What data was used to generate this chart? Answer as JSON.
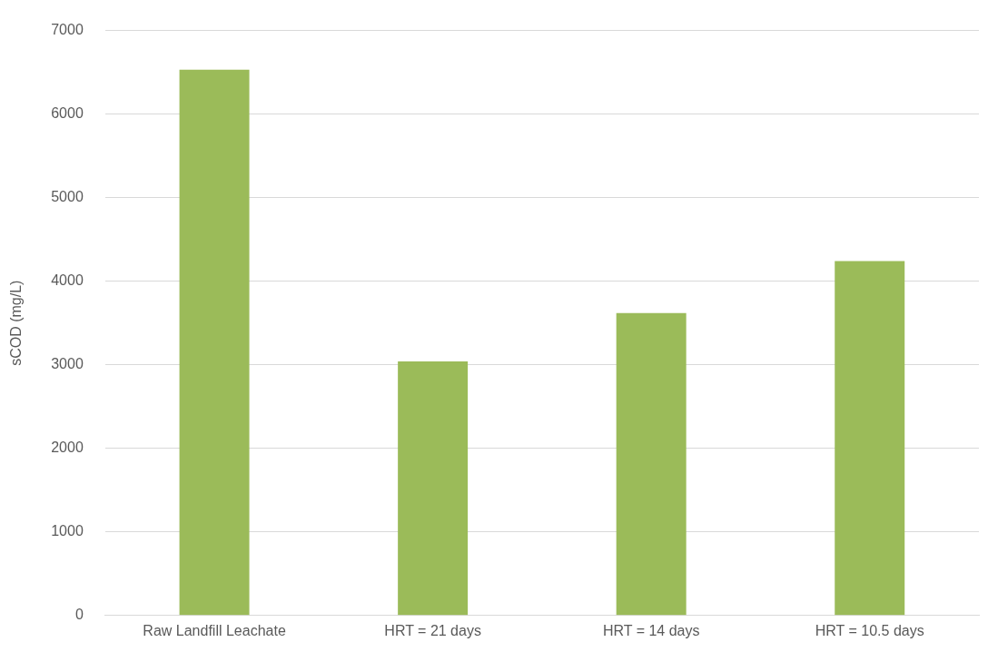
{
  "chart_data": {
    "type": "bar",
    "ylabel": "sCOD (mg/L)",
    "categories": [
      "Raw Landfill Leachate",
      "HRT = 21 days",
      "HRT = 14 days",
      "HRT = 10.5 days"
    ],
    "values": [
      6530,
      3040,
      3620,
      4240
    ],
    "color": "#9bbb59",
    "ylim": [
      0,
      7000
    ],
    "yticks": [
      0,
      1000,
      2000,
      3000,
      4000,
      5000,
      6000,
      7000
    ],
    "grid": "y"
  }
}
